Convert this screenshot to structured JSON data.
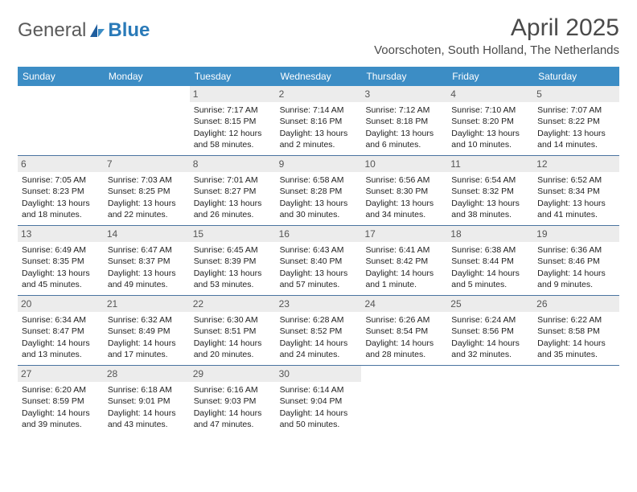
{
  "brand": {
    "word1": "General",
    "word2": "Blue"
  },
  "title": "April 2025",
  "subtitle": "Voorschoten, South Holland, The Netherlands",
  "colors": {
    "header_bg": "#3c8dc5",
    "header_text": "#ffffff",
    "daynum_bg": "#ececec",
    "daynum_text": "#555555",
    "week_border": "#4a74a0",
    "logo_gray": "#5a5a5a",
    "logo_blue": "#2a7ab8",
    "title_color": "#4a4a4a"
  },
  "typography": {
    "title_fontsize": 30,
    "subtitle_fontsize": 15,
    "header_fontsize": 12,
    "daynum_fontsize": 12,
    "cell_fontsize": 10.5
  },
  "day_names": [
    "Sunday",
    "Monday",
    "Tuesday",
    "Wednesday",
    "Thursday",
    "Friday",
    "Saturday"
  ],
  "weeks": [
    [
      {
        "num": "",
        "l1": "",
        "l2": "",
        "l3": "",
        "l4": ""
      },
      {
        "num": "",
        "l1": "",
        "l2": "",
        "l3": "",
        "l4": ""
      },
      {
        "num": "1",
        "l1": "Sunrise: 7:17 AM",
        "l2": "Sunset: 8:15 PM",
        "l3": "Daylight: 12 hours",
        "l4": "and 58 minutes."
      },
      {
        "num": "2",
        "l1": "Sunrise: 7:14 AM",
        "l2": "Sunset: 8:16 PM",
        "l3": "Daylight: 13 hours",
        "l4": "and 2 minutes."
      },
      {
        "num": "3",
        "l1": "Sunrise: 7:12 AM",
        "l2": "Sunset: 8:18 PM",
        "l3": "Daylight: 13 hours",
        "l4": "and 6 minutes."
      },
      {
        "num": "4",
        "l1": "Sunrise: 7:10 AM",
        "l2": "Sunset: 8:20 PM",
        "l3": "Daylight: 13 hours",
        "l4": "and 10 minutes."
      },
      {
        "num": "5",
        "l1": "Sunrise: 7:07 AM",
        "l2": "Sunset: 8:22 PM",
        "l3": "Daylight: 13 hours",
        "l4": "and 14 minutes."
      }
    ],
    [
      {
        "num": "6",
        "l1": "Sunrise: 7:05 AM",
        "l2": "Sunset: 8:23 PM",
        "l3": "Daylight: 13 hours",
        "l4": "and 18 minutes."
      },
      {
        "num": "7",
        "l1": "Sunrise: 7:03 AM",
        "l2": "Sunset: 8:25 PM",
        "l3": "Daylight: 13 hours",
        "l4": "and 22 minutes."
      },
      {
        "num": "8",
        "l1": "Sunrise: 7:01 AM",
        "l2": "Sunset: 8:27 PM",
        "l3": "Daylight: 13 hours",
        "l4": "and 26 minutes."
      },
      {
        "num": "9",
        "l1": "Sunrise: 6:58 AM",
        "l2": "Sunset: 8:28 PM",
        "l3": "Daylight: 13 hours",
        "l4": "and 30 minutes."
      },
      {
        "num": "10",
        "l1": "Sunrise: 6:56 AM",
        "l2": "Sunset: 8:30 PM",
        "l3": "Daylight: 13 hours",
        "l4": "and 34 minutes."
      },
      {
        "num": "11",
        "l1": "Sunrise: 6:54 AM",
        "l2": "Sunset: 8:32 PM",
        "l3": "Daylight: 13 hours",
        "l4": "and 38 minutes."
      },
      {
        "num": "12",
        "l1": "Sunrise: 6:52 AM",
        "l2": "Sunset: 8:34 PM",
        "l3": "Daylight: 13 hours",
        "l4": "and 41 minutes."
      }
    ],
    [
      {
        "num": "13",
        "l1": "Sunrise: 6:49 AM",
        "l2": "Sunset: 8:35 PM",
        "l3": "Daylight: 13 hours",
        "l4": "and 45 minutes."
      },
      {
        "num": "14",
        "l1": "Sunrise: 6:47 AM",
        "l2": "Sunset: 8:37 PM",
        "l3": "Daylight: 13 hours",
        "l4": "and 49 minutes."
      },
      {
        "num": "15",
        "l1": "Sunrise: 6:45 AM",
        "l2": "Sunset: 8:39 PM",
        "l3": "Daylight: 13 hours",
        "l4": "and 53 minutes."
      },
      {
        "num": "16",
        "l1": "Sunrise: 6:43 AM",
        "l2": "Sunset: 8:40 PM",
        "l3": "Daylight: 13 hours",
        "l4": "and 57 minutes."
      },
      {
        "num": "17",
        "l1": "Sunrise: 6:41 AM",
        "l2": "Sunset: 8:42 PM",
        "l3": "Daylight: 14 hours",
        "l4": "and 1 minute."
      },
      {
        "num": "18",
        "l1": "Sunrise: 6:38 AM",
        "l2": "Sunset: 8:44 PM",
        "l3": "Daylight: 14 hours",
        "l4": "and 5 minutes."
      },
      {
        "num": "19",
        "l1": "Sunrise: 6:36 AM",
        "l2": "Sunset: 8:46 PM",
        "l3": "Daylight: 14 hours",
        "l4": "and 9 minutes."
      }
    ],
    [
      {
        "num": "20",
        "l1": "Sunrise: 6:34 AM",
        "l2": "Sunset: 8:47 PM",
        "l3": "Daylight: 14 hours",
        "l4": "and 13 minutes."
      },
      {
        "num": "21",
        "l1": "Sunrise: 6:32 AM",
        "l2": "Sunset: 8:49 PM",
        "l3": "Daylight: 14 hours",
        "l4": "and 17 minutes."
      },
      {
        "num": "22",
        "l1": "Sunrise: 6:30 AM",
        "l2": "Sunset: 8:51 PM",
        "l3": "Daylight: 14 hours",
        "l4": "and 20 minutes."
      },
      {
        "num": "23",
        "l1": "Sunrise: 6:28 AM",
        "l2": "Sunset: 8:52 PM",
        "l3": "Daylight: 14 hours",
        "l4": "and 24 minutes."
      },
      {
        "num": "24",
        "l1": "Sunrise: 6:26 AM",
        "l2": "Sunset: 8:54 PM",
        "l3": "Daylight: 14 hours",
        "l4": "and 28 minutes."
      },
      {
        "num": "25",
        "l1": "Sunrise: 6:24 AM",
        "l2": "Sunset: 8:56 PM",
        "l3": "Daylight: 14 hours",
        "l4": "and 32 minutes."
      },
      {
        "num": "26",
        "l1": "Sunrise: 6:22 AM",
        "l2": "Sunset: 8:58 PM",
        "l3": "Daylight: 14 hours",
        "l4": "and 35 minutes."
      }
    ],
    [
      {
        "num": "27",
        "l1": "Sunrise: 6:20 AM",
        "l2": "Sunset: 8:59 PM",
        "l3": "Daylight: 14 hours",
        "l4": "and 39 minutes."
      },
      {
        "num": "28",
        "l1": "Sunrise: 6:18 AM",
        "l2": "Sunset: 9:01 PM",
        "l3": "Daylight: 14 hours",
        "l4": "and 43 minutes."
      },
      {
        "num": "29",
        "l1": "Sunrise: 6:16 AM",
        "l2": "Sunset: 9:03 PM",
        "l3": "Daylight: 14 hours",
        "l4": "and 47 minutes."
      },
      {
        "num": "30",
        "l1": "Sunrise: 6:14 AM",
        "l2": "Sunset: 9:04 PM",
        "l3": "Daylight: 14 hours",
        "l4": "and 50 minutes."
      },
      {
        "num": "",
        "l1": "",
        "l2": "",
        "l3": "",
        "l4": ""
      },
      {
        "num": "",
        "l1": "",
        "l2": "",
        "l3": "",
        "l4": ""
      },
      {
        "num": "",
        "l1": "",
        "l2": "",
        "l3": "",
        "l4": ""
      }
    ]
  ]
}
